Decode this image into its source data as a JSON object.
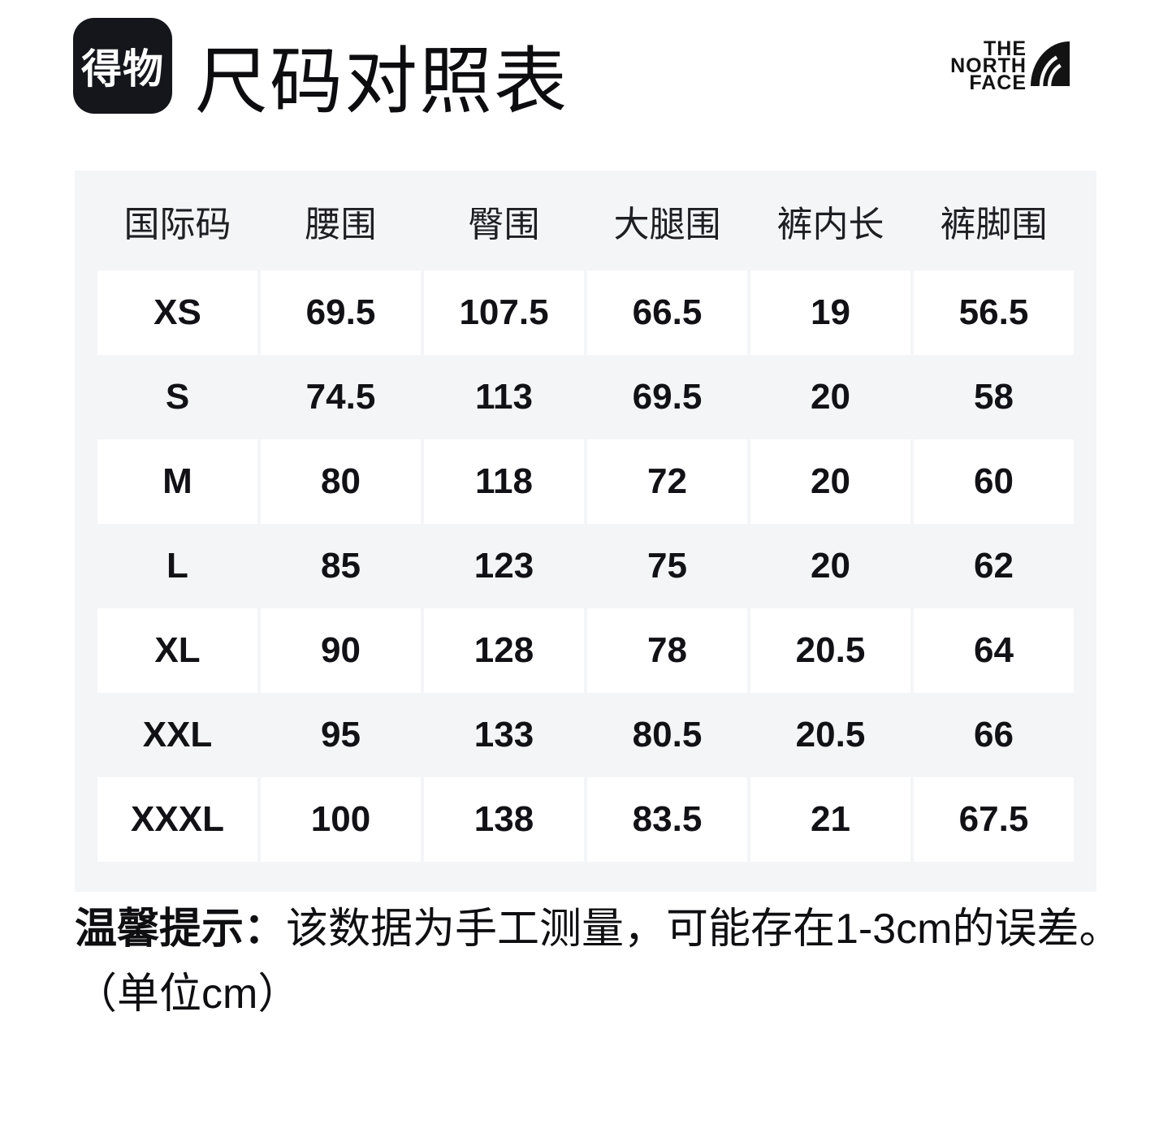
{
  "header": {
    "logo_text": "得物",
    "title": "尺码对照表",
    "brand_logo": {
      "lines": [
        "THE",
        "NORTH",
        "FACE"
      ],
      "icon": "half-dome-icon"
    }
  },
  "size_table": {
    "columns": [
      "国际码",
      "腰围",
      "臀围",
      "大腿围",
      "裤内长",
      "裤脚围"
    ],
    "rows": [
      {
        "size": "XS",
        "values": [
          "69.5",
          "107.5",
          "66.5",
          "19",
          "56.5"
        ]
      },
      {
        "size": "S",
        "values": [
          "74.5",
          "113",
          "69.5",
          "20",
          "58"
        ]
      },
      {
        "size": "M",
        "values": [
          "80",
          "118",
          "72",
          "20",
          "60"
        ]
      },
      {
        "size": "L",
        "values": [
          "85",
          "123",
          "75",
          "20",
          "62"
        ]
      },
      {
        "size": "XL",
        "values": [
          "90",
          "128",
          "78",
          "20.5",
          "64"
        ]
      },
      {
        "size": "XXL",
        "values": [
          "95",
          "133",
          "80.5",
          "20.5",
          "66"
        ]
      },
      {
        "size": "XXXL",
        "values": [
          "100",
          "138",
          "83.5",
          "21",
          "67.5"
        ]
      }
    ]
  },
  "note": {
    "label": "温馨提示：",
    "text": "该数据为手工测量，可能存在1-3cm的误差。",
    "unit_line": "（单位cm）"
  },
  "colors": {
    "panel_bg": "#f4f5f7",
    "cell_bg": "#ffffff",
    "logo_bg": "#15161b",
    "text": "#111111"
  }
}
